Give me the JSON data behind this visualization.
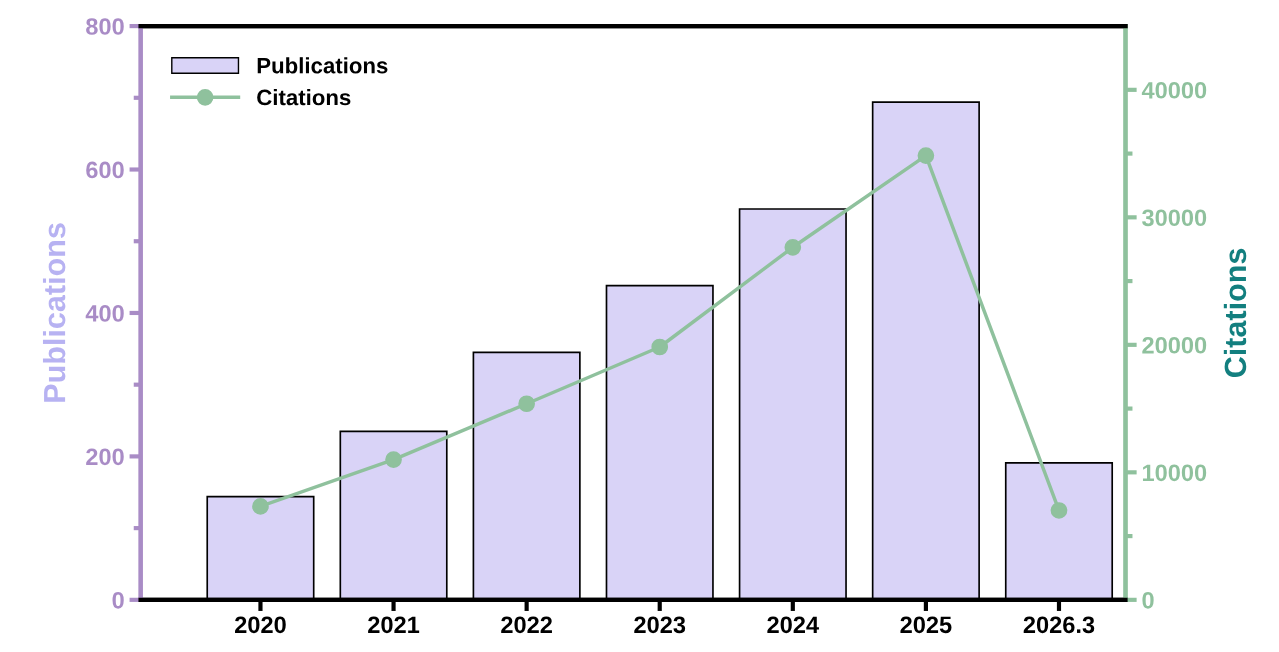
{
  "chart_data": {
    "type": "bar",
    "categories": [
      "2020",
      "2021",
      "2022",
      "2023",
      "2024",
      "2025",
      "2026.3"
    ],
    "ylabel": "Publications",
    "y2label": "Citations",
    "ylim": [
      0,
      800
    ],
    "yticks": [
      0,
      {
        "value": 100,
        "label": null
      },
      200,
      {
        "value": 300,
        "label": null
      },
      400,
      {
        "value": 500,
        "label": null
      },
      600,
      {
        "value": 700,
        "label": null
      },
      800
    ],
    "y2lim": [
      0,
      45000
    ],
    "y2ticks": [
      0,
      {
        "value": 5000,
        "label": null
      },
      10000,
      {
        "value": 15000,
        "label": null
      },
      20000,
      {
        "value": 25000,
        "label": null
      },
      30000,
      {
        "value": 35000,
        "label": null
      },
      40000
    ],
    "legend": "top left",
    "grid": false,
    "series": [
      {
        "name": "Publications",
        "color": "#d9d3f7",
        "values": [
          144,
          235,
          345,
          438,
          545,
          694,
          191
        ]
      },
      {
        "name": "Citations",
        "type": "line",
        "axis": "y2",
        "color": "#8fc19d",
        "marker": "circle",
        "values": [
          7330,
          11000,
          15380,
          19830,
          27650,
          34840,
          7010
        ]
      }
    ]
  }
}
